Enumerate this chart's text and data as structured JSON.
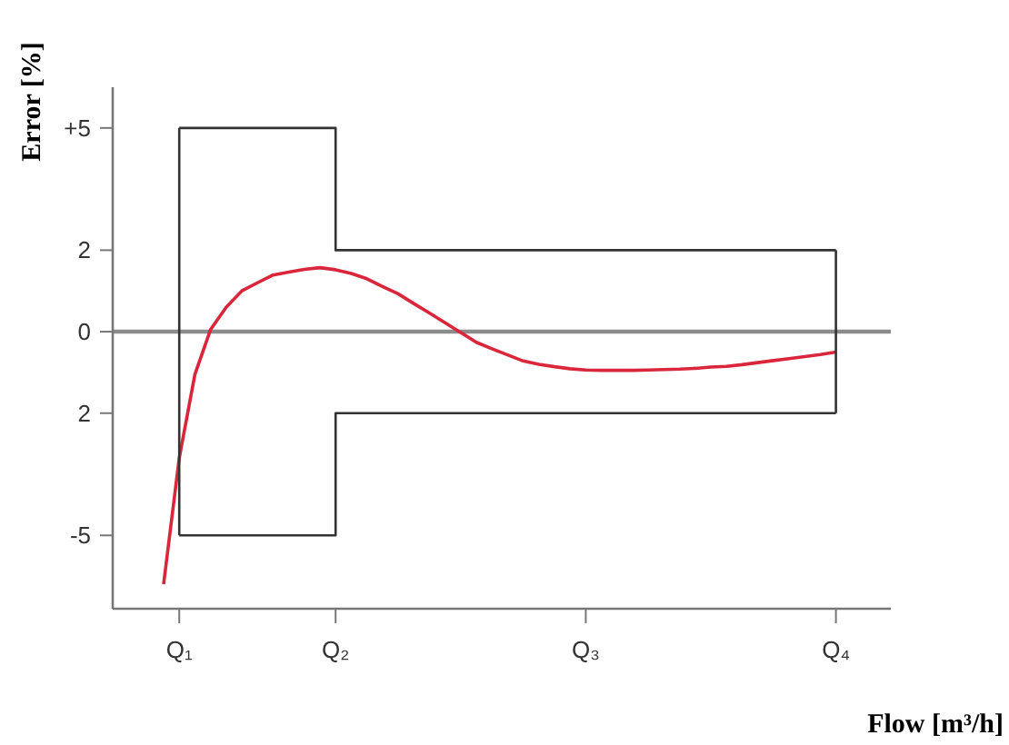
{
  "chart_data": {
    "type": "line",
    "xlabel": "Flow [m³/h]",
    "ylabel": "Error [%]",
    "categories": [
      null,
      "Q₁",
      null,
      null,
      null,
      null,
      null,
      null,
      null,
      null,
      null,
      "Q₂",
      null,
      null,
      null,
      null,
      null,
      null,
      null,
      null,
      null,
      null,
      null,
      null,
      null,
      null,
      null,
      "Q₃",
      null,
      null,
      null,
      null,
      null,
      null,
      null,
      null,
      null,
      null,
      null,
      null,
      null,
      null,
      null,
      "Q₄",
      null,
      null
    ],
    "ylim": [
      -6.8,
      6
    ],
    "yticks": [
      {
        "value": 5,
        "label": "+5"
      },
      2,
      0,
      {
        "value": -2,
        "label": "2"
      },
      -5
    ],
    "grid": false,
    "marker": "none",
    "ref_lines": [
      {
        "axis": "y",
        "value": 0,
        "color": "#8c8c8c"
      }
    ],
    "series": [
      {
        "type": "step",
        "color": "#333333",
        "values": [
          null,
          5,
          5,
          5,
          5,
          5,
          5,
          5,
          5,
          5,
          5,
          2,
          2,
          2,
          2,
          2,
          2,
          2,
          2,
          2,
          2,
          2,
          2,
          2,
          2,
          2,
          2,
          2,
          2,
          2,
          2,
          2,
          2,
          2,
          2,
          2,
          2,
          2,
          2,
          2,
          2,
          2,
          2,
          2,
          null,
          null
        ]
      },
      {
        "type": "step",
        "color": "#333333",
        "values": [
          null,
          -5,
          -5,
          -5,
          -5,
          -5,
          -5,
          -5,
          -5,
          -5,
          -5,
          -2,
          -2,
          -2,
          -2,
          -2,
          -2,
          -2,
          -2,
          -2,
          -2,
          -2,
          -2,
          -2,
          -2,
          -2,
          -2,
          -2,
          -2,
          -2,
          -2,
          -2,
          -2,
          -2,
          -2,
          -2,
          -2,
          -2,
          -2,
          -2,
          -2,
          -2,
          -2,
          -2,
          null,
          null
        ]
      },
      {
        "color": "#d9263a",
        "values": [
          -6.2,
          -3.1,
          -1.05,
          0.05,
          0.6,
          1.0,
          1.2,
          1.39,
          1.46,
          1.53,
          1.57,
          1.52,
          1.43,
          1.3,
          1.11,
          0.93,
          0.69,
          0.46,
          0.22,
          -0.02,
          -0.26,
          -0.42,
          -0.57,
          -0.72,
          -0.8,
          -0.86,
          -0.91,
          -0.94,
          -0.95,
          -0.95,
          -0.95,
          -0.94,
          -0.93,
          -0.92,
          -0.9,
          -0.87,
          -0.85,
          -0.81,
          -0.76,
          -0.71,
          -0.66,
          -0.61,
          -0.56,
          -0.5,
          null,
          null
        ]
      }
    ]
  }
}
